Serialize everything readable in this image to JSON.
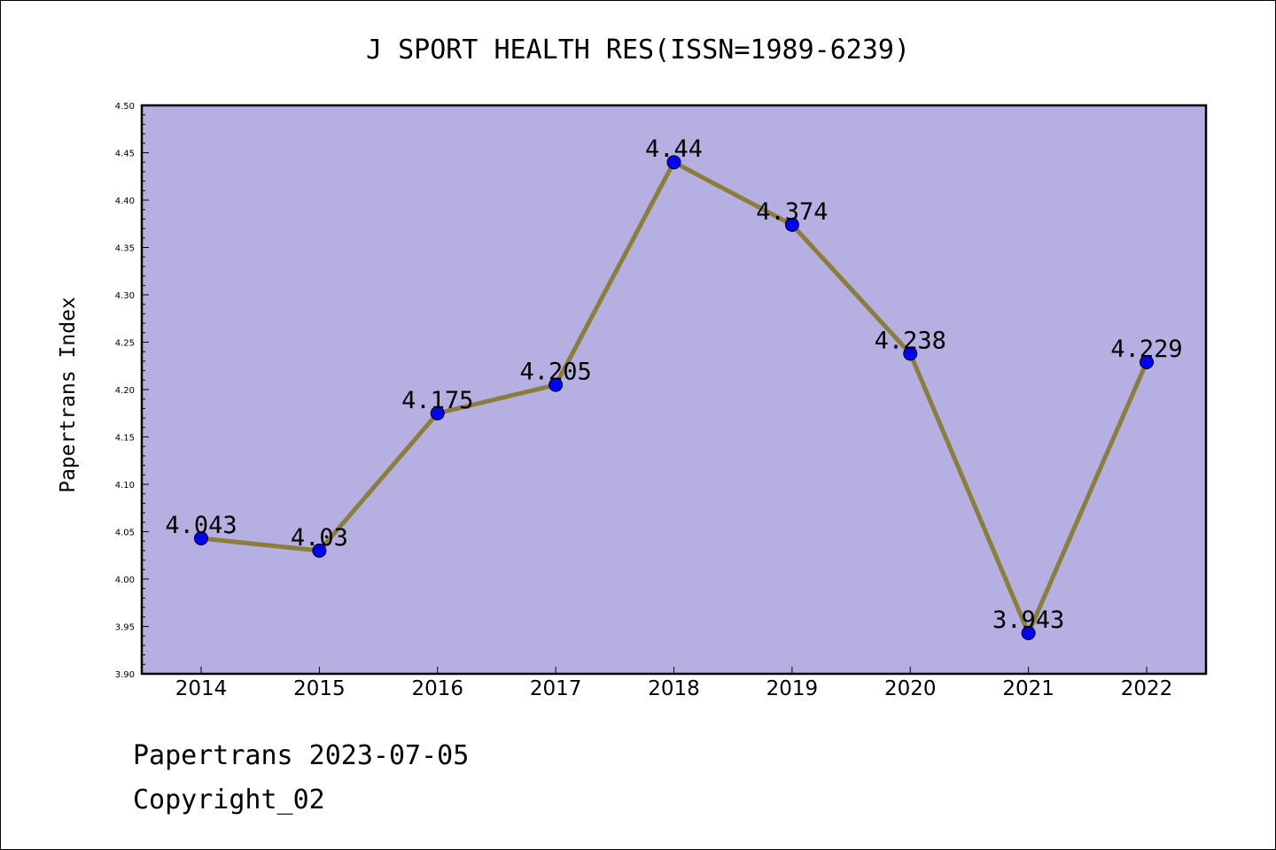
{
  "chart_data": {
    "type": "line",
    "title": "J SPORT HEALTH RES(ISSN=1989-6239)",
    "xlabel": "",
    "ylabel": "Papertrans Index",
    "categories": [
      "2014",
      "2015",
      "2016",
      "2017",
      "2018",
      "2019",
      "2020",
      "2021",
      "2022"
    ],
    "values": [
      4.043,
      4.03,
      4.175,
      4.205,
      4.44,
      4.374,
      4.238,
      3.943,
      4.229
    ],
    "data_labels": [
      "4.043",
      "4.03",
      "4.175",
      "4.205",
      "4.44",
      "4.374",
      "4.238",
      "3.943",
      "4.229"
    ],
    "ylim": [
      3.9,
      4.5
    ],
    "yticks": [
      "3.90",
      "3.95",
      "4.00",
      "4.05",
      "4.10",
      "4.15",
      "4.20",
      "4.25",
      "4.30",
      "4.35",
      "4.40",
      "4.45",
      "4.50"
    ],
    "grid": false,
    "legend": false,
    "colors": {
      "plot_background": "#b5afe2",
      "line": "#8b7d3a",
      "marker": "#0000ff"
    }
  },
  "footer": {
    "line1": "Papertrans 2023-07-05",
    "line2": "Copyright_02"
  }
}
